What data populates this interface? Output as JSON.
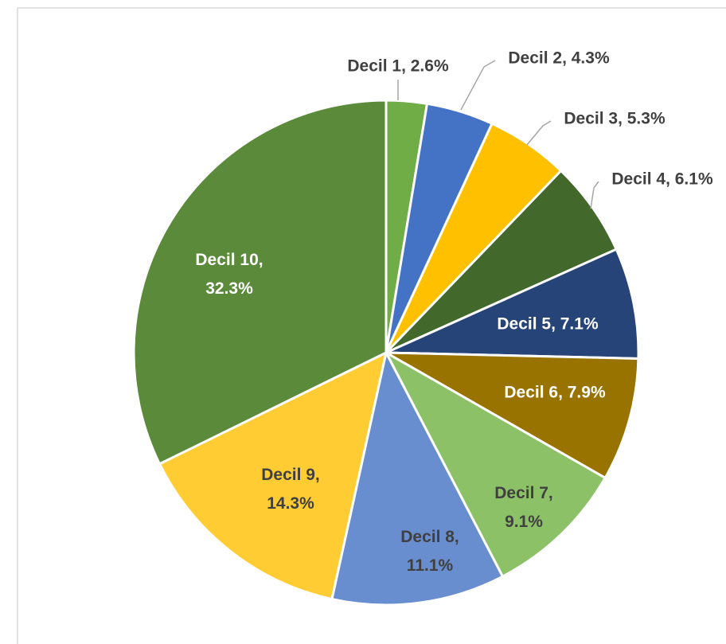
{
  "chart_data": {
    "type": "pie",
    "values": [
      2.6,
      4.3,
      5.3,
      6.1,
      7.1,
      7.9,
      9.1,
      11.1,
      14.3,
      32.3
    ],
    "value_labels": [
      "Decil 1, 2.6%",
      "Decil 2, 4.3%",
      "Decil 3, 5.3%",
      "Decil 4, 6.1%",
      "Decil 5, 7.1%",
      "Decil 6, 7.9%",
      "Decil 7, 9.1%",
      "Decil 8, 11.1%",
      "Decil 9, 14.3%",
      "Decil 10, 32.3%"
    ],
    "colors": [
      "#70ad47",
      "#4472c4",
      "#ffc000",
      "#43682b",
      "#264478",
      "#997300",
      "#8cc168",
      "#698ed0",
      "#ffcd33",
      "#5b8a3b"
    ]
  }
}
